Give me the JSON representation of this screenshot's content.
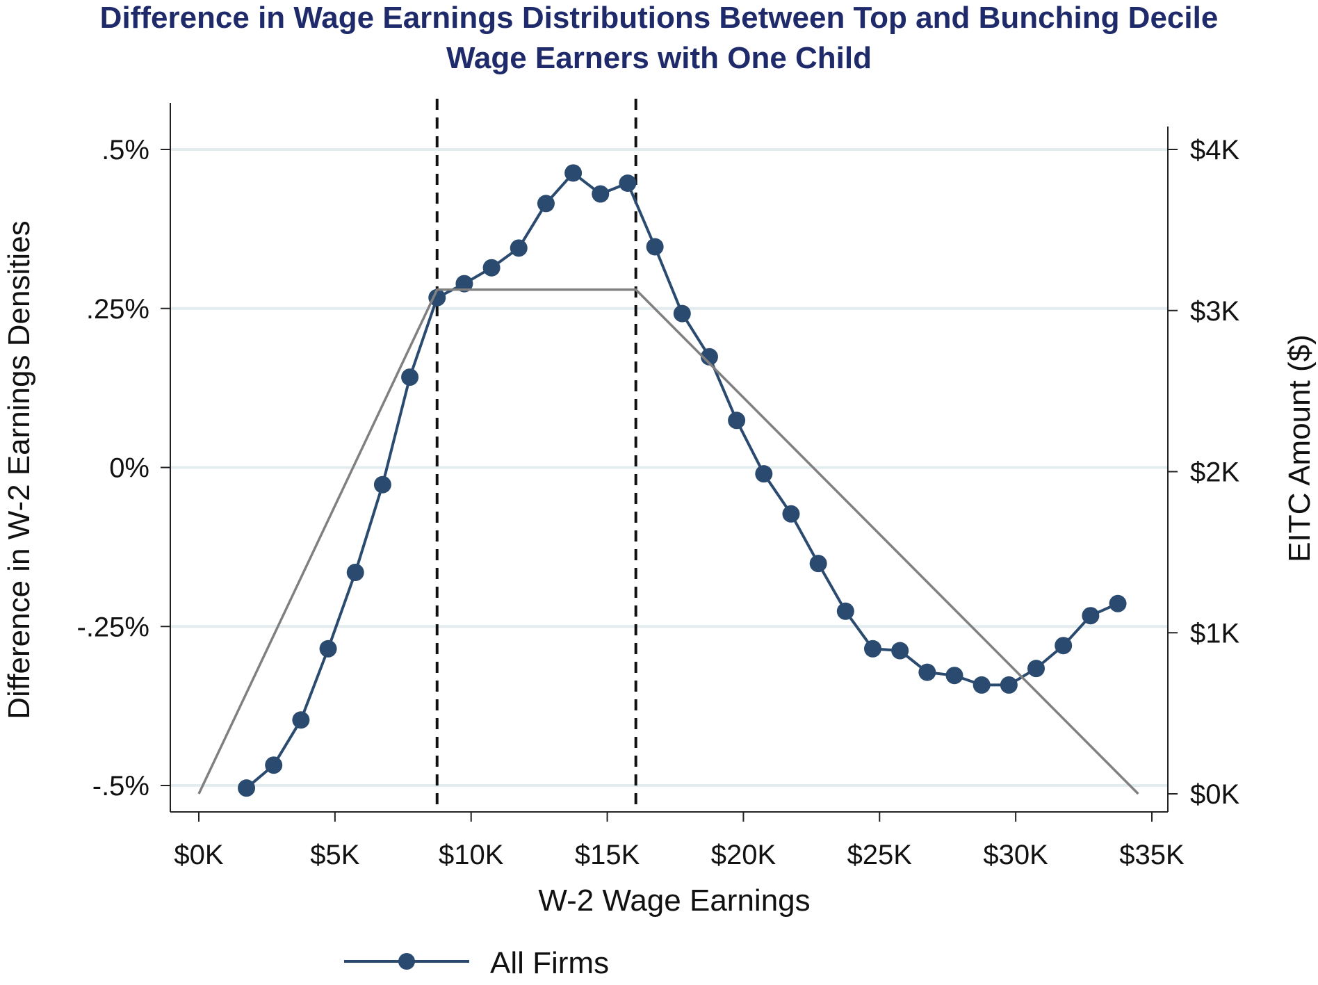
{
  "chart_data": {
    "type": "line",
    "title_line1": "Difference in Wage Earnings Distributions Between Top and Bunching Decile",
    "title_line2": "Wage Earners with One Child",
    "xlabel": "W-2 Wage Earnings",
    "ylabel_left": "Difference in W-2 Earnings Densities",
    "ylabel_right": "EITC Amount ($)",
    "x_unit": "$K",
    "xlim": [
      0,
      35
    ],
    "ylim_left": [
      -0.5,
      0.5
    ],
    "ylim_right": [
      0,
      4
    ],
    "x_ticks": [
      {
        "value": 0,
        "label": "$0K"
      },
      {
        "value": 5,
        "label": "$5K"
      },
      {
        "value": 10,
        "label": "$10K"
      },
      {
        "value": 15,
        "label": "$15K"
      },
      {
        "value": 20,
        "label": "$20K"
      },
      {
        "value": 25,
        "label": "$25K"
      },
      {
        "value": 30,
        "label": "$30K"
      },
      {
        "value": 35,
        "label": "$35K"
      }
    ],
    "y_left_ticks": [
      {
        "value": 0.5,
        "label": ".5%"
      },
      {
        "value": 0.25,
        "label": ".25%"
      },
      {
        "value": 0,
        "label": "0%"
      },
      {
        "value": -0.25,
        "label": "-.25%"
      },
      {
        "value": -0.5,
        "label": "-.5%"
      }
    ],
    "y_right_ticks": [
      {
        "value": 4,
        "label": "$4K"
      },
      {
        "value": 3,
        "label": "$3K"
      },
      {
        "value": 2,
        "label": "$2K"
      },
      {
        "value": 1,
        "label": "$1K"
      },
      {
        "value": 0,
        "label": "$0K"
      }
    ],
    "grid": true,
    "vertical_dashed_lines_x": [
      8.75,
      16.05
    ],
    "series": [
      {
        "name": "All Firms",
        "axis": "left",
        "color": "#2b4a6f",
        "marker": "circle",
        "x": [
          1.75,
          2.75,
          3.75,
          4.75,
          5.75,
          6.75,
          7.75,
          8.75,
          9.75,
          10.75,
          11.75,
          12.75,
          13.75,
          14.75,
          15.75,
          16.75,
          17.75,
          18.75,
          19.75,
          20.75,
          21.75,
          22.75,
          23.75,
          24.75,
          25.75,
          26.75,
          27.75,
          28.75,
          29.75,
          30.75,
          31.75,
          32.75,
          33.75
        ],
        "y": [
          -0.504,
          -0.468,
          -0.397,
          -0.285,
          -0.165,
          -0.027,
          0.142,
          0.267,
          0.289,
          0.314,
          0.345,
          0.415,
          0.463,
          0.43,
          0.447,
          0.347,
          0.242,
          0.174,
          0.074,
          -0.01,
          -0.073,
          -0.151,
          -0.226,
          -0.285,
          -0.288,
          -0.322,
          -0.327,
          -0.342,
          -0.342,
          -0.316,
          -0.28,
          -0.233,
          -0.214
        ]
      },
      {
        "axis": "right",
        "color": "#808080",
        "marker": "none",
        "x": [
          0,
          8.75,
          16.05,
          34.5
        ],
        "y": [
          0,
          3.13,
          3.13,
          0
        ]
      }
    ],
    "legend": {
      "position": "bottom",
      "entries": [
        "All Firms"
      ]
    }
  }
}
